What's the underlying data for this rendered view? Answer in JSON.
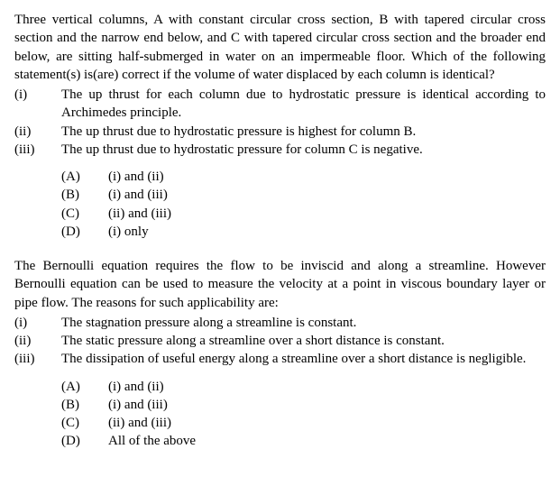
{
  "q1": {
    "prompt": "Three vertical columns, A with constant circular cross section, B with tapered circular cross section and the narrow end below, and C with tapered circular cross section and the broader end below, are sitting half-submerged in water on an impermeable floor. Which of the following statement(s) is(are) correct if the volume of water displaced by each column is identical?",
    "statements": [
      {
        "label": "(i)",
        "text": "The up thrust for each column due to hydrostatic pressure is identical according to Archimedes principle."
      },
      {
        "label": "(ii)",
        "text": "The up thrust due to hydrostatic pressure is highest for column B."
      },
      {
        "label": "(iii)",
        "text": "The up thrust due to hydrostatic pressure for column C is negative."
      }
    ],
    "options": [
      {
        "label": "(A)",
        "text": "(i) and (ii)"
      },
      {
        "label": "(B)",
        "text": "(i) and (iii)"
      },
      {
        "label": "(C)",
        "text": "(ii) and (iii)"
      },
      {
        "label": "(D)",
        "text": "(i) only"
      }
    ]
  },
  "q2": {
    "prompt": "The Bernoulli equation requires the flow to be inviscid and along a streamline. However Bernoulli equation can be used to measure the velocity at a point in viscous boundary layer or pipe flow. The reasons for such applicability are:",
    "statements": [
      {
        "label": "(i)",
        "text": "The stagnation pressure along a streamline is constant."
      },
      {
        "label": "(ii)",
        "text": "The static pressure along a streamline over a short distance is constant."
      },
      {
        "label": "(iii)",
        "text": "The dissipation of useful energy along a streamline over a short distance is negligible."
      }
    ],
    "options": [
      {
        "label": "(A)",
        "text": "(i) and (ii)"
      },
      {
        "label": "(B)",
        "text": "(i) and (iii)"
      },
      {
        "label": "(C)",
        "text": "(ii) and (iii)"
      },
      {
        "label": "(D)",
        "text": "All of the above"
      }
    ]
  }
}
